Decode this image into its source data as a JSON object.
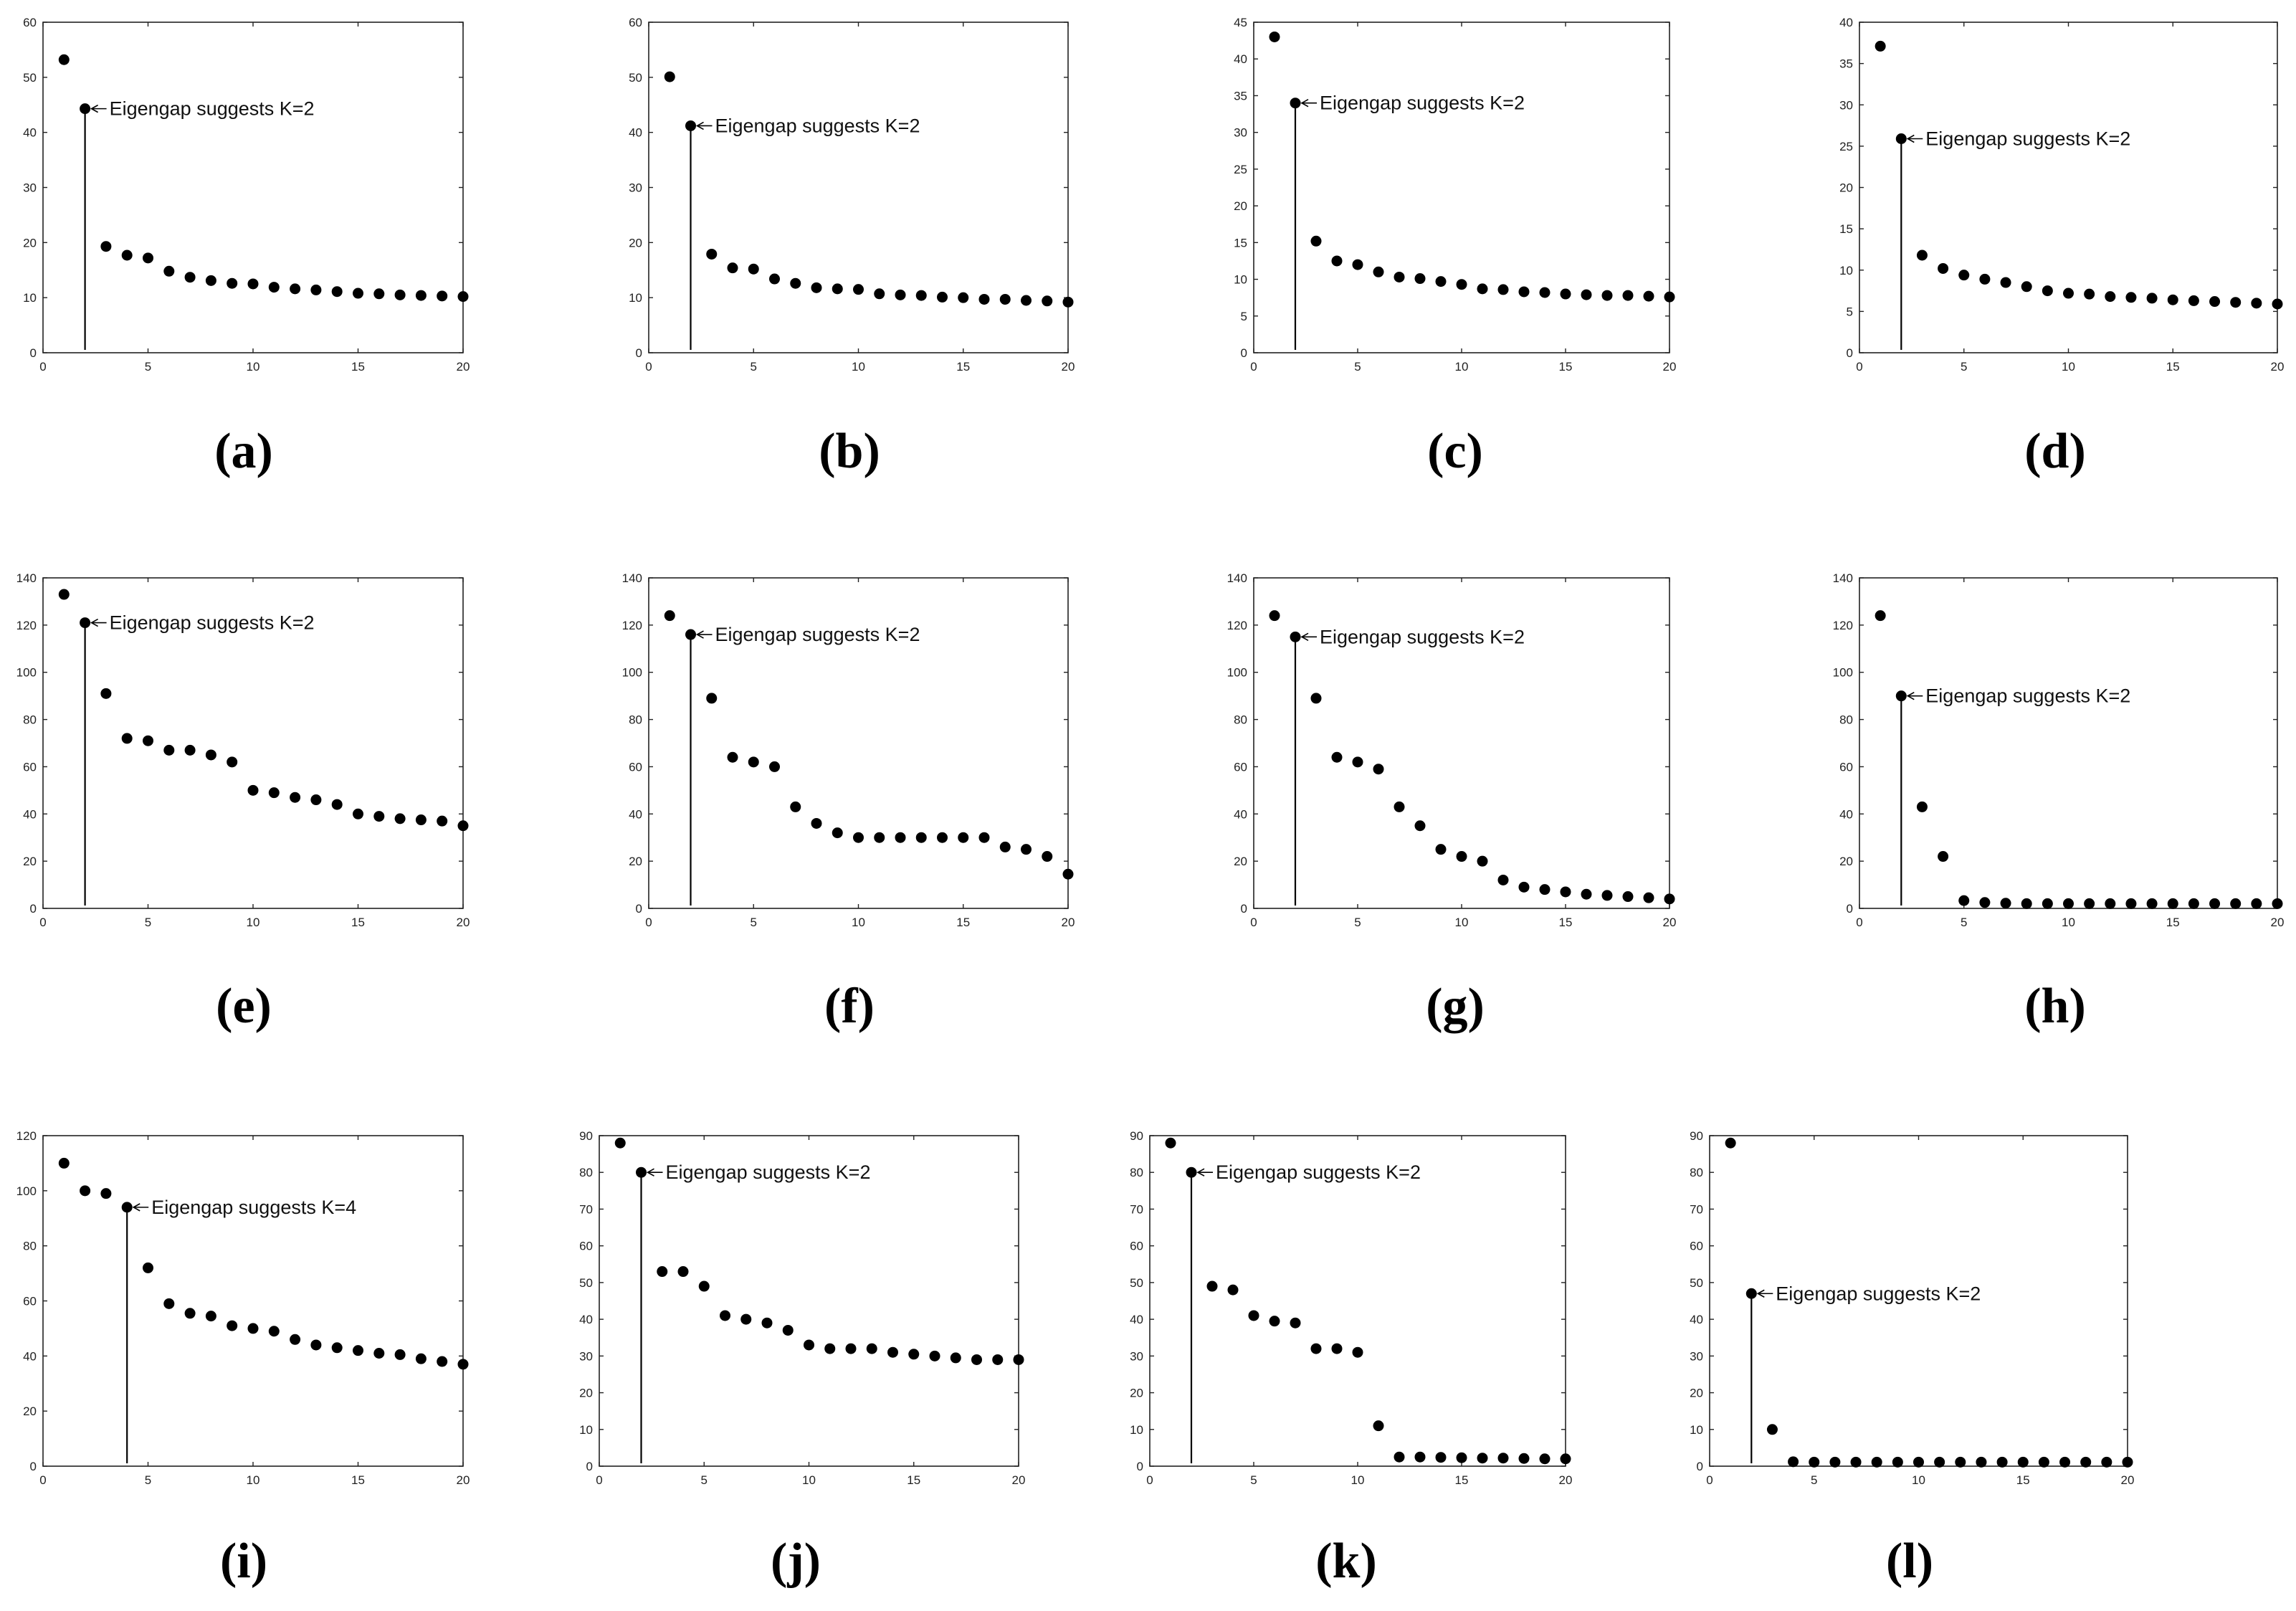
{
  "chart_data": [
    {
      "type": "scatter",
      "caption": "(a)",
      "x": [
        1,
        2,
        3,
        4,
        5,
        6,
        7,
        8,
        9,
        10,
        11,
        12,
        13,
        14,
        15,
        16,
        17,
        18,
        19,
        20
      ],
      "values": [
        53.2,
        44.3,
        19.3,
        17.7,
        17.2,
        14.8,
        13.7,
        13.1,
        12.6,
        12.5,
        11.9,
        11.6,
        11.4,
        11.1,
        10.8,
        10.7,
        10.5,
        10.4,
        10.3,
        10.2
      ],
      "xlim": [
        0,
        20
      ],
      "ylim": [
        0,
        60
      ],
      "yticks": [
        0,
        10,
        20,
        30,
        40,
        50,
        60
      ],
      "xticks": [
        0,
        5,
        10,
        15,
        20
      ],
      "annotation": {
        "x": 2,
        "text": "Eigengap suggests K=2"
      }
    },
    {
      "type": "scatter",
      "caption": "(b)",
      "x": [
        1,
        2,
        3,
        4,
        5,
        6,
        7,
        8,
        9,
        10,
        11,
        12,
        13,
        14,
        15,
        16,
        17,
        18,
        19,
        20
      ],
      "values": [
        50.1,
        41.2,
        17.9,
        15.4,
        15.2,
        13.4,
        12.6,
        11.8,
        11.6,
        11.5,
        10.7,
        10.5,
        10.4,
        10.1,
        10.0,
        9.7,
        9.7,
        9.5,
        9.4,
        9.2
      ],
      "xlim": [
        0,
        20
      ],
      "ylim": [
        0,
        60
      ],
      "yticks": [
        0,
        10,
        20,
        30,
        40,
        50,
        60
      ],
      "xticks": [
        0,
        5,
        10,
        15,
        20
      ],
      "annotation": {
        "x": 2,
        "text": "Eigengap suggests K=2"
      }
    },
    {
      "type": "scatter",
      "caption": "(c)",
      "x": [
        1,
        2,
        3,
        4,
        5,
        6,
        7,
        8,
        9,
        10,
        11,
        12,
        13,
        14,
        15,
        16,
        17,
        18,
        19,
        20
      ],
      "values": [
        43.0,
        34.0,
        15.2,
        12.5,
        12.0,
        11.0,
        10.3,
        10.1,
        9.7,
        9.3,
        8.7,
        8.6,
        8.3,
        8.2,
        8.0,
        7.9,
        7.8,
        7.8,
        7.7,
        7.6
      ],
      "xlim": [
        0,
        20
      ],
      "ylim": [
        0,
        45
      ],
      "yticks": [
        0,
        5,
        10,
        15,
        20,
        25,
        30,
        35,
        40,
        45
      ],
      "xticks": [
        0,
        5,
        10,
        15,
        20
      ],
      "annotation": {
        "x": 2,
        "text": "Eigengap suggests K=2"
      }
    },
    {
      "type": "scatter",
      "caption": "(d)",
      "x": [
        1,
        2,
        3,
        4,
        5,
        6,
        7,
        8,
        9,
        10,
        11,
        12,
        13,
        14,
        15,
        16,
        17,
        18,
        19,
        20
      ],
      "values": [
        37.1,
        25.9,
        11.8,
        10.2,
        9.4,
        8.9,
        8.5,
        8.0,
        7.5,
        7.2,
        7.1,
        6.8,
        6.7,
        6.6,
        6.4,
        6.3,
        6.2,
        6.1,
        6.0,
        5.9
      ],
      "xlim": [
        0,
        20
      ],
      "ylim": [
        0,
        40
      ],
      "yticks": [
        0,
        5,
        10,
        15,
        20,
        25,
        30,
        35,
        40
      ],
      "xticks": [
        0,
        5,
        10,
        15,
        20
      ],
      "annotation": {
        "x": 2,
        "text": "Eigengap suggests K=2"
      }
    },
    {
      "type": "scatter",
      "caption": "(e)",
      "x": [
        1,
        2,
        3,
        4,
        5,
        6,
        7,
        8,
        9,
        10,
        11,
        12,
        13,
        14,
        15,
        16,
        17,
        18,
        19,
        20
      ],
      "values": [
        133,
        121,
        91,
        72,
        71,
        67,
        67,
        65,
        62,
        50,
        49,
        47,
        46,
        44,
        40,
        39,
        38,
        37.5,
        37,
        35
      ],
      "xlim": [
        0,
        20
      ],
      "ylim": [
        0,
        140
      ],
      "yticks": [
        0,
        20,
        40,
        60,
        80,
        100,
        120,
        140
      ],
      "xticks": [
        0,
        5,
        10,
        15,
        20
      ],
      "annotation": {
        "x": 2,
        "text": "Eigengap suggests K=2"
      }
    },
    {
      "type": "scatter",
      "caption": "(f)",
      "x": [
        1,
        2,
        3,
        4,
        5,
        6,
        7,
        8,
        9,
        10,
        11,
        12,
        13,
        14,
        15,
        16,
        17,
        18,
        19,
        20
      ],
      "values": [
        124,
        116,
        89,
        64,
        62,
        60,
        43,
        36,
        32,
        30,
        30,
        30,
        30,
        30,
        30,
        30,
        26,
        25,
        22,
        14.5
      ],
      "xlim": [
        0,
        20
      ],
      "ylim": [
        0,
        140
      ],
      "yticks": [
        0,
        20,
        40,
        60,
        80,
        100,
        120,
        140
      ],
      "xticks": [
        0,
        5,
        10,
        15,
        20
      ],
      "annotation": {
        "x": 2,
        "text": "Eigengap suggests K=2"
      }
    },
    {
      "type": "scatter",
      "caption": "(g)",
      "x": [
        1,
        2,
        3,
        4,
        5,
        6,
        7,
        8,
        9,
        10,
        11,
        12,
        13,
        14,
        15,
        16,
        17,
        18,
        19,
        20
      ],
      "values": [
        124,
        115,
        89,
        64,
        62,
        59,
        43,
        35,
        25,
        22,
        20,
        12,
        9,
        8,
        7,
        6,
        5.5,
        5,
        4.5,
        4
      ],
      "xlim": [
        0,
        20
      ],
      "ylim": [
        0,
        140
      ],
      "yticks": [
        0,
        20,
        40,
        60,
        80,
        100,
        120,
        140
      ],
      "xticks": [
        0,
        5,
        10,
        15,
        20
      ],
      "annotation": {
        "x": 2,
        "text": "Eigengap suggests K=2"
      }
    },
    {
      "type": "scatter",
      "caption": "(h)",
      "x": [
        1,
        2,
        3,
        4,
        5,
        6,
        7,
        8,
        9,
        10,
        11,
        12,
        13,
        14,
        15,
        16,
        17,
        18,
        19,
        20
      ],
      "values": [
        124,
        90,
        43,
        22,
        3.3,
        2.5,
        2.2,
        2,
        2,
        2,
        2,
        2,
        2,
        2,
        2,
        2,
        2,
        2,
        2,
        2
      ],
      "xlim": [
        0,
        20
      ],
      "ylim": [
        0,
        140
      ],
      "yticks": [
        0,
        20,
        40,
        60,
        80,
        100,
        120,
        140
      ],
      "xticks": [
        0,
        5,
        10,
        15,
        20
      ],
      "annotation": {
        "x": 2,
        "text": "Eigengap suggests K=2"
      }
    },
    {
      "type": "scatter",
      "caption": "(i)",
      "x": [
        1,
        2,
        3,
        4,
        5,
        6,
        7,
        8,
        9,
        10,
        11,
        12,
        13,
        14,
        15,
        16,
        17,
        18,
        19,
        20
      ],
      "values": [
        110,
        100,
        99,
        94,
        72,
        59,
        55.5,
        54.5,
        51,
        50,
        49,
        46,
        44,
        43,
        42,
        41,
        40.5,
        39,
        38,
        37
      ],
      "xlim": [
        0,
        20
      ],
      "ylim": [
        0,
        120
      ],
      "yticks": [
        0,
        20,
        40,
        60,
        80,
        100,
        120
      ],
      "xticks": [
        0,
        5,
        10,
        15,
        20
      ],
      "annotation": {
        "x": 4,
        "text": "Eigengap suggests K=4"
      }
    },
    {
      "type": "scatter",
      "caption": "(j)",
      "x": [
        1,
        2,
        3,
        4,
        5,
        6,
        7,
        8,
        9,
        10,
        11,
        12,
        13,
        14,
        15,
        16,
        17,
        18,
        19,
        20
      ],
      "values": [
        88,
        80,
        53,
        53,
        49,
        41,
        40,
        39,
        37,
        33,
        32,
        32,
        32,
        31,
        30.5,
        30,
        29.5,
        29,
        29,
        29
      ],
      "xlim": [
        0,
        20
      ],
      "ylim": [
        0,
        90
      ],
      "yticks": [
        0,
        10,
        20,
        30,
        40,
        50,
        60,
        70,
        80,
        90
      ],
      "xticks": [
        0,
        5,
        10,
        15,
        20
      ],
      "annotation": {
        "x": 2,
        "text": "Eigengap suggests K=2"
      }
    },
    {
      "type": "scatter",
      "caption": "(k)",
      "x": [
        1,
        2,
        3,
        4,
        5,
        6,
        7,
        8,
        9,
        10,
        11,
        12,
        13,
        14,
        15,
        16,
        17,
        18,
        19,
        20
      ],
      "values": [
        88,
        80,
        49,
        48,
        41,
        39.5,
        39,
        32,
        32,
        31,
        11,
        2.5,
        2.5,
        2.4,
        2.3,
        2.2,
        2.2,
        2.1,
        2,
        2
      ],
      "xlim": [
        0,
        20
      ],
      "ylim": [
        0,
        90
      ],
      "yticks": [
        0,
        10,
        20,
        30,
        40,
        50,
        60,
        70,
        80,
        90
      ],
      "xticks": [
        0,
        5,
        10,
        15,
        20
      ],
      "annotation": {
        "x": 2,
        "text": "Eigengap suggests K=2"
      }
    },
    {
      "type": "scatter",
      "caption": "(l)",
      "x": [
        1,
        2,
        3,
        4,
        5,
        6,
        7,
        8,
        9,
        10,
        11,
        12,
        13,
        14,
        15,
        16,
        17,
        18,
        19,
        20
      ],
      "values": [
        88,
        47,
        10,
        1.2,
        1.1,
        1.1,
        1.1,
        1.1,
        1.1,
        1.1,
        1.1,
        1.1,
        1.1,
        1.1,
        1.1,
        1.1,
        1.1,
        1.1,
        1.1,
        1.1
      ],
      "xlim": [
        0,
        20
      ],
      "ylim": [
        0,
        90
      ],
      "yticks": [
        0,
        10,
        20,
        30,
        40,
        50,
        60,
        70,
        80,
        90
      ],
      "xticks": [
        0,
        5,
        10,
        15,
        20
      ],
      "annotation": {
        "x": 2,
        "text": "Eigengap suggests K=2"
      }
    }
  ]
}
